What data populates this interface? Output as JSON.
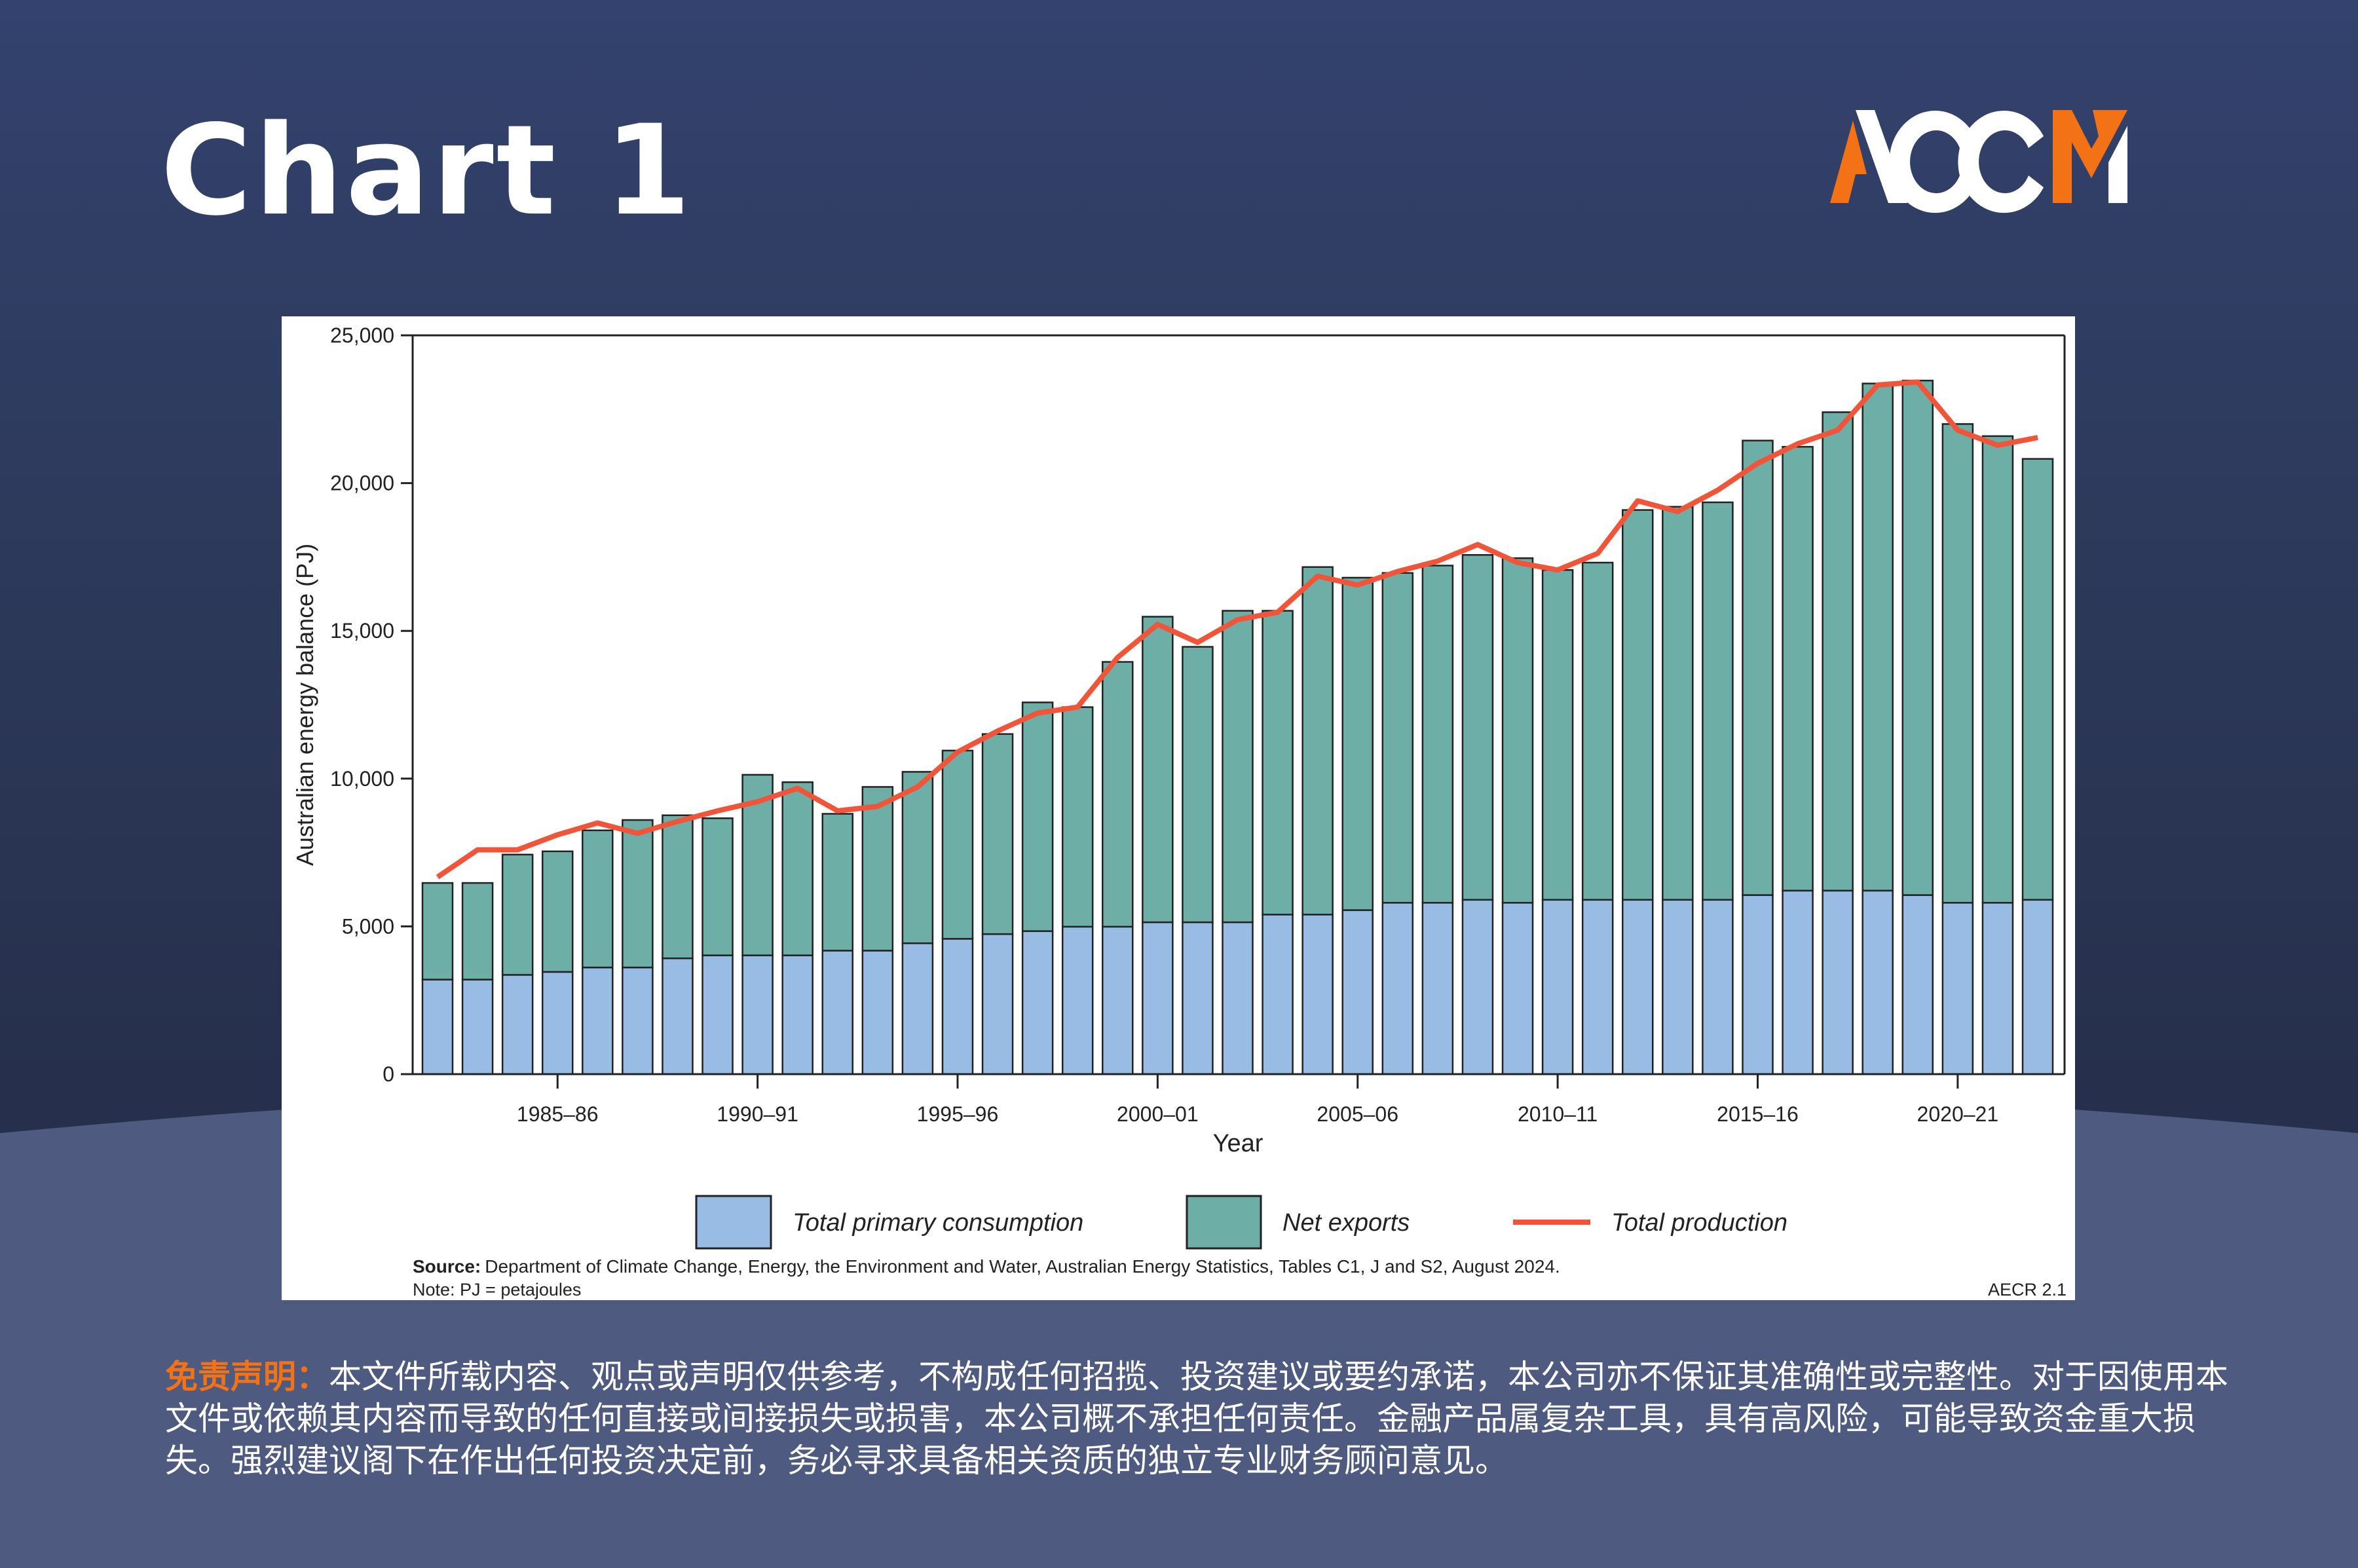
{
  "header": {
    "title": "Chart 1",
    "logo_text": "ACCM"
  },
  "colors": {
    "consumption": "#98bce4",
    "net_exports": "#6daea6",
    "production": "#f0553a",
    "logo_orange": "#f47216",
    "background": "#2c3858"
  },
  "chart_data": {
    "type": "bar",
    "stacked": true,
    "categories": [
      "1982–83",
      "1983–84",
      "1984–85",
      "1985–86",
      "1986–87",
      "1987–88",
      "1988–89",
      "1989–90",
      "1990–91",
      "1991–92",
      "1992–93",
      "1993–94",
      "1994–95",
      "1995–96",
      "1996–97",
      "1997–98",
      "1998–99",
      "1999–00",
      "2000–01",
      "2001–02",
      "2002–03",
      "2003–04",
      "2004–05",
      "2005–06",
      "2006–07",
      "2007–08",
      "2008–09",
      "2009–10",
      "2010–11",
      "2011–12",
      "2012–13",
      "2013–14",
      "2014–15",
      "2015–16",
      "2016–17",
      "2017–18",
      "2018–19",
      "2019–20",
      "2020–21",
      "2021–22",
      "2022–23"
    ],
    "x_tick_labels": [
      "1985–86",
      "1990–91",
      "1995–96",
      "2000–01",
      "2005–06",
      "2010–11",
      "2015–16",
      "2020–21"
    ],
    "series": [
      {
        "name": "Total primary consumption",
        "type": "bar",
        "values": [
          3200,
          3200,
          3360,
          3460,
          3610,
          3610,
          3920,
          4020,
          4020,
          4020,
          4180,
          4180,
          4430,
          4580,
          4740,
          4840,
          4990,
          4990,
          5140,
          5140,
          5140,
          5400,
          5400,
          5550,
          5800,
          5800,
          5900,
          5800,
          5900,
          5900,
          5900,
          5900,
          5900,
          6060,
          6210,
          6210,
          6210,
          6060,
          5800,
          5800,
          5900
        ]
      },
      {
        "name": "Net exports",
        "type": "bar",
        "values": [
          3270,
          3270,
          4070,
          4080,
          4640,
          4990,
          4840,
          4640,
          6110,
          5860,
          4630,
          5540,
          5800,
          6370,
          6770,
          7740,
          7430,
          8960,
          10340,
          9320,
          10540,
          10280,
          11760,
          11250,
          11160,
          11410,
          11670,
          11660,
          11160,
          11410,
          13190,
          13300,
          13450,
          15380,
          15020,
          16190,
          17160,
          17410,
          16200,
          15790,
          14920
        ]
      },
      {
        "name": "Total production",
        "type": "line",
        "values": [
          6670,
          7590,
          7590,
          8100,
          8500,
          8150,
          8550,
          8910,
          9220,
          9670,
          8910,
          9060,
          9720,
          10900,
          11610,
          12220,
          12420,
          14100,
          15220,
          14610,
          15380,
          15630,
          16850,
          16550,
          17010,
          17360,
          17920,
          17310,
          17060,
          17620,
          19400,
          19040,
          19760,
          20670,
          21330,
          21790,
          23320,
          23420,
          21790,
          21280,
          21540
        ]
      }
    ],
    "xlabel": "Year",
    "ylabel": "Australian energy balance (PJ)",
    "ylim": [
      0,
      25000
    ],
    "y_ticks": [
      "0",
      "5,000",
      "10,000",
      "15,000",
      "20,000",
      "25,000"
    ],
    "grid": false,
    "legend_position": "bottom",
    "source_label": "Source:",
    "source": "Department of Climate Change, Energy, the Environment and Water, Australian Energy Statistics, Tables C1, J and S2, August 2024.",
    "note": "Note: PJ = petajoules",
    "figure_id": "AECR 2.1"
  },
  "disclaimer": {
    "label": "免责声明：",
    "text": "本文件所载内容、观点或声明仅供参考，不构成任何招揽、投资建议或要约承诺，本公司亦不保证其准确性或完整性。对于因使用本文件或依赖其内容而导致的任何直接或间接损失或损害，本公司概不承担任何责任。金融产品属复杂工具，具有高风险，可能导致资金重大损失。强烈建议阁下在作出任何投资决定前，务必寻求具备相关资质的独立专业财务顾问意见。"
  }
}
